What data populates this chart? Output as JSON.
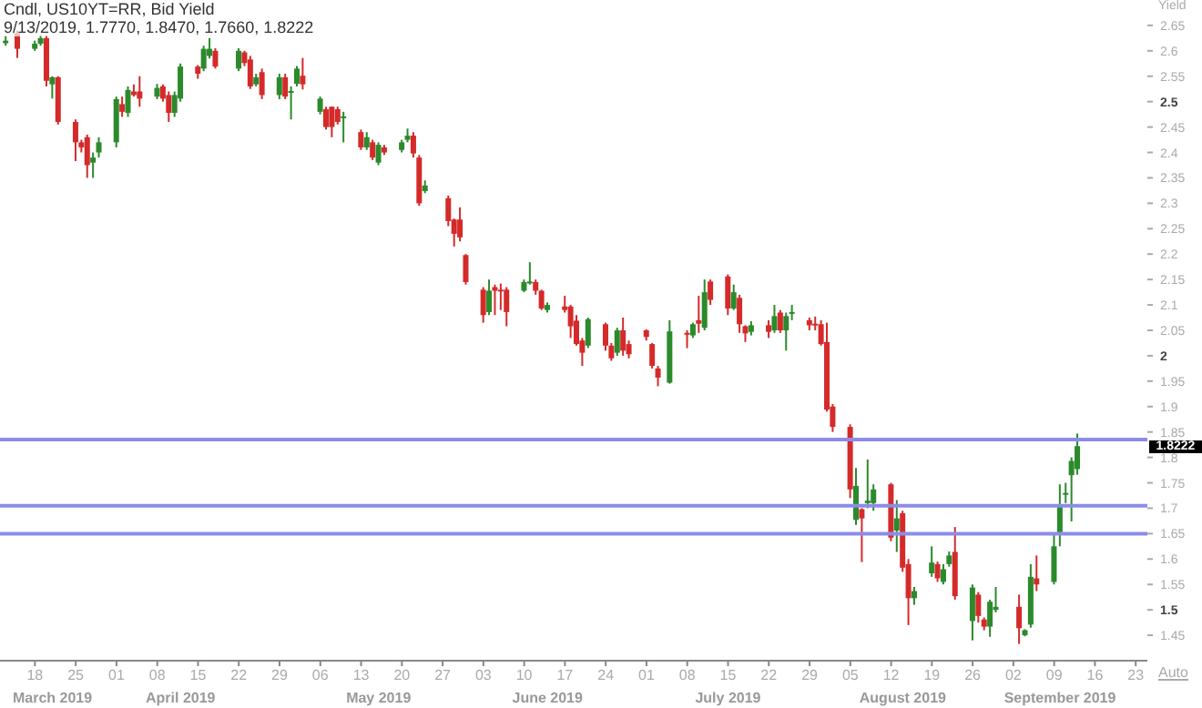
{
  "chart_data": {
    "type": "candlestick",
    "title": "Cndl, US10YT=RR, Bid Yield",
    "subtitle": "9/13/2019, 1.7770, 1.8470, 1.7660, 1.8222",
    "ylabel": "Yield",
    "x": [
      "2019-03-13",
      "2019-03-15",
      "2019-03-18",
      "2019-03-19",
      "2019-03-20",
      "2019-03-21",
      "2019-03-22",
      "2019-03-25",
      "2019-03-26",
      "2019-03-27",
      "2019-03-28",
      "2019-03-29",
      "2019-04-01",
      "2019-04-02",
      "2019-04-03",
      "2019-04-04",
      "2019-04-05",
      "2019-04-08",
      "2019-04-09",
      "2019-04-10",
      "2019-04-11",
      "2019-04-12",
      "2019-04-15",
      "2019-04-16",
      "2019-04-17",
      "2019-04-18",
      "2019-04-22",
      "2019-04-23",
      "2019-04-24",
      "2019-04-25",
      "2019-04-26",
      "2019-04-29",
      "2019-04-30",
      "2019-05-01",
      "2019-05-02",
      "2019-05-03",
      "2019-05-06",
      "2019-05-07",
      "2019-05-08",
      "2019-05-09",
      "2019-05-10",
      "2019-05-13",
      "2019-05-14",
      "2019-05-15",
      "2019-05-16",
      "2019-05-17",
      "2019-05-20",
      "2019-05-21",
      "2019-05-22",
      "2019-05-23",
      "2019-05-24",
      "2019-05-28",
      "2019-05-29",
      "2019-05-30",
      "2019-05-31",
      "2019-06-03",
      "2019-06-04",
      "2019-06-05",
      "2019-06-06",
      "2019-06-07",
      "2019-06-10",
      "2019-06-11",
      "2019-06-12",
      "2019-06-13",
      "2019-06-14",
      "2019-06-17",
      "2019-06-18",
      "2019-06-19",
      "2019-06-20",
      "2019-06-21",
      "2019-06-24",
      "2019-06-25",
      "2019-06-26",
      "2019-06-27",
      "2019-06-28",
      "2019-07-01",
      "2019-07-02",
      "2019-07-03",
      "2019-07-05",
      "2019-07-08",
      "2019-07-09",
      "2019-07-10",
      "2019-07-11",
      "2019-07-12",
      "2019-07-15",
      "2019-07-16",
      "2019-07-17",
      "2019-07-18",
      "2019-07-19",
      "2019-07-22",
      "2019-07-23",
      "2019-07-24",
      "2019-07-25",
      "2019-07-26",
      "2019-07-29",
      "2019-07-30",
      "2019-07-31",
      "2019-08-01",
      "2019-08-02",
      "2019-08-05",
      "2019-08-06",
      "2019-08-07",
      "2019-08-08",
      "2019-08-09",
      "2019-08-12",
      "2019-08-13",
      "2019-08-14",
      "2019-08-15",
      "2019-08-16",
      "2019-08-19",
      "2019-08-20",
      "2019-08-21",
      "2019-08-22",
      "2019-08-23",
      "2019-08-26",
      "2019-08-27",
      "2019-08-28",
      "2019-08-29",
      "2019-08-30",
      "2019-09-03",
      "2019-09-04",
      "2019-09-05",
      "2019-09-06",
      "2019-09-09",
      "2019-09-10",
      "2019-09-11",
      "2019-09-12",
      "2019-09-13"
    ],
    "ohlc": [
      [
        2.615,
        2.63,
        2.61,
        2.62
      ],
      [
        2.635,
        2.64,
        2.586,
        2.604
      ],
      [
        2.604,
        2.62,
        2.6,
        2.614
      ],
      [
        2.614,
        2.632,
        2.61,
        2.625
      ],
      [
        2.625,
        2.63,
        2.53,
        2.541
      ],
      [
        2.534,
        2.55,
        2.506,
        2.548
      ],
      [
        2.548,
        2.55,
        2.455,
        2.46
      ],
      [
        2.46,
        2.465,
        2.383,
        2.42
      ],
      [
        2.42,
        2.425,
        2.4,
        2.41
      ],
      [
        2.43,
        2.435,
        2.35,
        2.375
      ],
      [
        2.38,
        2.4,
        2.35,
        2.39
      ],
      [
        2.4,
        2.43,
        2.39,
        2.42
      ],
      [
        2.42,
        2.51,
        2.41,
        2.505
      ],
      [
        2.495,
        2.51,
        2.47,
        2.48
      ],
      [
        2.478,
        2.53,
        2.47,
        2.523
      ],
      [
        2.52,
        2.534,
        2.51,
        2.513
      ],
      [
        2.52,
        2.55,
        2.49,
        2.506
      ],
      [
        2.51,
        2.535,
        2.505,
        2.527
      ],
      [
        2.53,
        2.534,
        2.5,
        2.506
      ],
      [
        2.513,
        2.52,
        2.46,
        2.478
      ],
      [
        2.478,
        2.52,
        2.47,
        2.513
      ],
      [
        2.506,
        2.575,
        2.5,
        2.569
      ],
      [
        2.569,
        2.572,
        2.545,
        2.555
      ],
      [
        2.565,
        2.61,
        2.56,
        2.604
      ],
      [
        2.59,
        2.625,
        2.585,
        2.604
      ],
      [
        2.6,
        2.605,
        2.565,
        2.569
      ],
      [
        2.565,
        2.605,
        2.56,
        2.6
      ],
      [
        2.597,
        2.6,
        2.57,
        2.576
      ],
      [
        2.583,
        2.59,
        2.525,
        2.53
      ],
      [
        2.534,
        2.555,
        2.53,
        2.548
      ],
      [
        2.558,
        2.565,
        2.505,
        2.513
      ],
      [
        2.513,
        2.555,
        2.505,
        2.548
      ],
      [
        2.548,
        2.555,
        2.505,
        2.51
      ],
      [
        2.52,
        2.53,
        2.465,
        2.521
      ],
      [
        2.535,
        2.57,
        2.53,
        2.565
      ],
      [
        2.551,
        2.586,
        2.524,
        2.534
      ],
      [
        2.48,
        2.51,
        2.475,
        2.506
      ],
      [
        2.485,
        2.49,
        2.445,
        2.45
      ],
      [
        2.49,
        2.49,
        2.43,
        2.45
      ],
      [
        2.485,
        2.49,
        2.455,
        2.46
      ],
      [
        2.47,
        2.48,
        2.42,
        2.471
      ],
      [
        2.44,
        2.445,
        2.405,
        2.41
      ],
      [
        2.41,
        2.44,
        2.405,
        2.43
      ],
      [
        2.42,
        2.425,
        2.385,
        2.39
      ],
      [
        2.38,
        2.42,
        2.375,
        2.415
      ],
      [
        2.41,
        2.415,
        2.395,
        2.4
      ],
      [
        2.405,
        2.425,
        2.4,
        2.42
      ],
      [
        2.425,
        2.447,
        2.42,
        2.433
      ],
      [
        2.433,
        2.44,
        2.39,
        2.398
      ],
      [
        2.39,
        2.395,
        2.295,
        2.3
      ],
      [
        2.324,
        2.345,
        2.32,
        2.335
      ],
      [
        2.31,
        2.315,
        2.255,
        2.265
      ],
      [
        2.268,
        2.27,
        2.215,
        2.24
      ],
      [
        2.268,
        2.292,
        2.225,
        2.233
      ],
      [
        2.198,
        2.2,
        2.14,
        2.145
      ],
      [
        2.13,
        2.135,
        2.065,
        2.08
      ],
      [
        2.086,
        2.15,
        2.08,
        2.128
      ],
      [
        2.135,
        2.14,
        2.08,
        2.128
      ],
      [
        2.13,
        2.142,
        2.09,
        2.128
      ],
      [
        2.13,
        2.135,
        2.058,
        2.086
      ],
      [
        2.128,
        2.15,
        2.125,
        2.145
      ],
      [
        2.145,
        2.184,
        2.14,
        2.146
      ],
      [
        2.145,
        2.15,
        2.12,
        2.128
      ],
      [
        2.128,
        2.13,
        2.09,
        2.093
      ],
      [
        2.09,
        2.105,
        2.085,
        2.1
      ],
      [
        2.097,
        2.118,
        2.085,
        2.09
      ],
      [
        2.097,
        2.1,
        2.035,
        2.058
      ],
      [
        2.069,
        2.08,
        2.02,
        2.023
      ],
      [
        2.03,
        2.035,
        1.98,
        2.006
      ],
      [
        2.02,
        2.075,
        2.015,
        2.072
      ],
      [
        2.062,
        2.065,
        2.01,
        2.02
      ],
      [
        2.02,
        2.025,
        1.99,
        1.995
      ],
      [
        2.006,
        2.055,
        2.0,
        2.05
      ],
      [
        2.05,
        2.075,
        2.0,
        2.01
      ],
      [
        2.023,
        2.03,
        1.995,
        2.003
      ],
      [
        2.05,
        2.052,
        2.03,
        2.037
      ],
      [
        2.023,
        2.025,
        1.975,
        1.98
      ],
      [
        1.975,
        1.98,
        1.94,
        1.957
      ],
      [
        1.947,
        2.07,
        1.945,
        2.048
      ],
      [
        2.045,
        2.05,
        2.015,
        2.042
      ],
      [
        2.04,
        2.065,
        2.035,
        2.062
      ],
      [
        2.07,
        2.118,
        2.045,
        2.063
      ],
      [
        2.055,
        2.15,
        2.05,
        2.125
      ],
      [
        2.146,
        2.15,
        2.1,
        2.11
      ],
      [
        2.156,
        2.16,
        2.08,
        2.093
      ],
      [
        2.093,
        2.14,
        2.09,
        2.125
      ],
      [
        2.114,
        2.12,
        2.045,
        2.062
      ],
      [
        2.058,
        2.06,
        2.027,
        2.044
      ],
      [
        2.047,
        2.068,
        2.04,
        2.06
      ],
      [
        2.06,
        2.07,
        2.035,
        2.047
      ],
      [
        2.05,
        2.1,
        2.045,
        2.078
      ],
      [
        2.085,
        2.09,
        2.045,
        2.05
      ],
      [
        2.05,
        2.085,
        2.01,
        2.078
      ],
      [
        2.085,
        2.1,
        2.07,
        2.086
      ],
      [
        2.07,
        2.075,
        2.05,
        2.06
      ],
      [
        2.063,
        2.077,
        2.05,
        2.062
      ],
      [
        2.062,
        2.07,
        2.02,
        2.023
      ],
      [
        2.027,
        2.065,
        1.89,
        1.894
      ],
      [
        1.9,
        1.905,
        1.85,
        1.86
      ],
      [
        1.86,
        1.865,
        1.72,
        1.737
      ],
      [
        1.677,
        1.779,
        1.667,
        1.744
      ],
      [
        1.698,
        1.7,
        1.594,
        1.68
      ],
      [
        1.71,
        1.796,
        1.7,
        1.715
      ],
      [
        1.71,
        1.747,
        1.695,
        1.737
      ],
      [
        1.747,
        1.75,
        1.635,
        1.642
      ],
      [
        1.656,
        1.716,
        1.614,
        1.68
      ],
      [
        1.69,
        1.695,
        1.575,
        1.583
      ],
      [
        1.59,
        1.6,
        1.47,
        1.523
      ],
      [
        1.523,
        1.545,
        1.51,
        1.537
      ],
      [
        1.572,
        1.625,
        1.565,
        1.593
      ],
      [
        1.59,
        1.595,
        1.555,
        1.562
      ],
      [
        1.555,
        1.59,
        1.55,
        1.58
      ],
      [
        1.59,
        1.615,
        1.585,
        1.607
      ],
      [
        1.614,
        1.663,
        1.52,
        1.527
      ],
      [
        1.478,
        1.55,
        1.44,
        1.544
      ],
      [
        1.53,
        1.535,
        1.475,
        1.488
      ],
      [
        1.481,
        1.485,
        1.46,
        1.467
      ],
      [
        1.467,
        1.52,
        1.447,
        1.516
      ],
      [
        1.5,
        1.545,
        1.495,
        1.506
      ],
      [
        1.506,
        1.53,
        1.433,
        1.464
      ],
      [
        1.45,
        1.462,
        1.448,
        1.46
      ],
      [
        1.471,
        1.59,
        1.465,
        1.565
      ],
      [
        1.562,
        1.607,
        1.537,
        1.55
      ],
      [
        1.555,
        1.65,
        1.55,
        1.625
      ],
      [
        1.65,
        1.747,
        1.625,
        1.705
      ],
      [
        1.727,
        1.75,
        1.71,
        1.73
      ],
      [
        1.765,
        1.8,
        1.674,
        1.793
      ],
      [
        1.777,
        1.847,
        1.766,
        1.8222
      ]
    ],
    "colors": [
      "#2b8a2b",
      "#d42a2a",
      "#2b8a2b",
      "#2b8a2b",
      "#d42a2a",
      "#2b8a2b",
      "#d42a2a",
      "#d42a2a",
      "#d42a2a",
      "#d42a2a",
      "#2b8a2b",
      "#2b8a2b",
      "#2b8a2b",
      "#d42a2a",
      "#2b8a2b",
      "#d42a2a",
      "#d42a2a",
      "#2b8a2b",
      "#d42a2a",
      "#d42a2a",
      "#2b8a2b",
      "#2b8a2b",
      "#d42a2a",
      "#2b8a2b",
      "#2b8a2b",
      "#d42a2a",
      "#2b8a2b",
      "#d42a2a",
      "#d42a2a",
      "#2b8a2b",
      "#d42a2a",
      "#2b8a2b",
      "#d42a2a",
      "#2b8a2b",
      "#2b8a2b",
      "#d42a2a",
      "#2b8a2b",
      "#d42a2a",
      "#d42a2a",
      "#d42a2a",
      "#2b8a2b",
      "#d42a2a",
      "#2b8a2b",
      "#d42a2a",
      "#2b8a2b",
      "#d42a2a",
      "#2b8a2b",
      "#2b8a2b",
      "#d42a2a",
      "#d42a2a",
      "#2b8a2b",
      "#d42a2a",
      "#d42a2a",
      "#d42a2a",
      "#d42a2a",
      "#d42a2a",
      "#2b8a2b",
      "#d42a2a",
      "#d42a2a",
      "#d42a2a",
      "#2b8a2b",
      "#2b8a2b",
      "#d42a2a",
      "#d42a2a",
      "#2b8a2b",
      "#d42a2a",
      "#d42a2a",
      "#d42a2a",
      "#d42a2a",
      "#2b8a2b",
      "#d42a2a",
      "#d42a2a",
      "#2b8a2b",
      "#d42a2a",
      "#d42a2a",
      "#d42a2a",
      "#d42a2a",
      "#d42a2a",
      "#2b8a2b",
      "#d42a2a",
      "#2b8a2b",
      "#d42a2a",
      "#2b8a2b",
      "#d42a2a",
      "#d42a2a",
      "#2b8a2b",
      "#d42a2a",
      "#d42a2a",
      "#2b8a2b",
      "#d42a2a",
      "#2b8a2b",
      "#d42a2a",
      "#2b8a2b",
      "#2b8a2b",
      "#d42a2a",
      "#d42a2a",
      "#d42a2a",
      "#d42a2a",
      "#d42a2a",
      "#d42a2a",
      "#2b8a2b",
      "#d42a2a",
      "#2b8a2b",
      "#2b8a2b",
      "#d42a2a",
      "#2b8a2b",
      "#d42a2a",
      "#d42a2a",
      "#2b8a2b",
      "#2b8a2b",
      "#d42a2a",
      "#2b8a2b",
      "#2b8a2b",
      "#d42a2a",
      "#2b8a2b",
      "#d42a2a",
      "#d42a2a",
      "#2b8a2b",
      "#2b8a2b",
      "#d42a2a",
      "#2b8a2b",
      "#2b8a2b",
      "#d42a2a",
      "#2b8a2b",
      "#2b8a2b",
      "#2b8a2b",
      "#2b8a2b",
      "#2b8a2b"
    ],
    "xlim": [
      "2019-03-12",
      "2019-09-25"
    ],
    "xticks": [
      {
        "value": "2019-03-18",
        "label": "18"
      },
      {
        "value": "2019-03-25",
        "label": "25"
      },
      {
        "value": "2019-04-01",
        "label": "01"
      },
      {
        "value": "2019-04-08",
        "label": "08"
      },
      {
        "value": "2019-04-15",
        "label": "15"
      },
      {
        "value": "2019-04-22",
        "label": "22"
      },
      {
        "value": "2019-04-29",
        "label": "29"
      },
      {
        "value": "2019-05-06",
        "label": "06"
      },
      {
        "value": "2019-05-13",
        "label": "13"
      },
      {
        "value": "2019-05-20",
        "label": "20"
      },
      {
        "value": "2019-05-27",
        "label": "27"
      },
      {
        "value": "2019-06-03",
        "label": "03"
      },
      {
        "value": "2019-06-10",
        "label": "10"
      },
      {
        "value": "2019-06-17",
        "label": "17"
      },
      {
        "value": "2019-06-24",
        "label": "24"
      },
      {
        "value": "2019-07-01",
        "label": "01"
      },
      {
        "value": "2019-07-08",
        "label": "08"
      },
      {
        "value": "2019-07-15",
        "label": "15"
      },
      {
        "value": "2019-07-22",
        "label": "22"
      },
      {
        "value": "2019-07-29",
        "label": "29"
      },
      {
        "value": "2019-08-05",
        "label": "05"
      },
      {
        "value": "2019-08-12",
        "label": "12"
      },
      {
        "value": "2019-08-19",
        "label": "19"
      },
      {
        "value": "2019-08-26",
        "label": "26"
      },
      {
        "value": "2019-09-02",
        "label": "02"
      },
      {
        "value": "2019-09-09",
        "label": "09"
      },
      {
        "value": "2019-09-16",
        "label": "16"
      },
      {
        "value": "2019-09-23",
        "label": "23"
      }
    ],
    "x2lim": [
      "2019-03-12",
      "2019-09-25"
    ],
    "x2ticks": [
      {
        "value": "2019-03-21",
        "label": "March 2019"
      },
      {
        "value": "2019-04-12",
        "label": "April 2019"
      },
      {
        "value": "2019-05-16",
        "label": "May 2019"
      },
      {
        "value": "2019-06-14",
        "label": "June 2019"
      },
      {
        "value": "2019-07-15",
        "label": "July 2019"
      },
      {
        "value": "2019-08-14",
        "label": "August 2019"
      },
      {
        "value": "2019-09-10",
        "label": "September 2019"
      }
    ],
    "ylim": [
      1.4,
      2.7
    ],
    "yticks": [
      1.45,
      1.5,
      1.55,
      1.6,
      1.65,
      1.7,
      1.75,
      1.8,
      1.85,
      1.9,
      1.95,
      2,
      2.05,
      2.1,
      2.15,
      2.2,
      2.25,
      2.3,
      2.35,
      2.4,
      2.45,
      2.5,
      2.55,
      2.6,
      2.65
    ],
    "ref_lines": [
      {
        "axis": "y",
        "value": 1.835,
        "color": "#8c8ce8"
      },
      {
        "axis": "y",
        "value": 1.705,
        "color": "#8c8ce8"
      },
      {
        "axis": "y",
        "value": 1.65,
        "color": "#8c8ce8"
      }
    ],
    "annotations": [
      "1.8222",
      "Auto"
    ]
  }
}
